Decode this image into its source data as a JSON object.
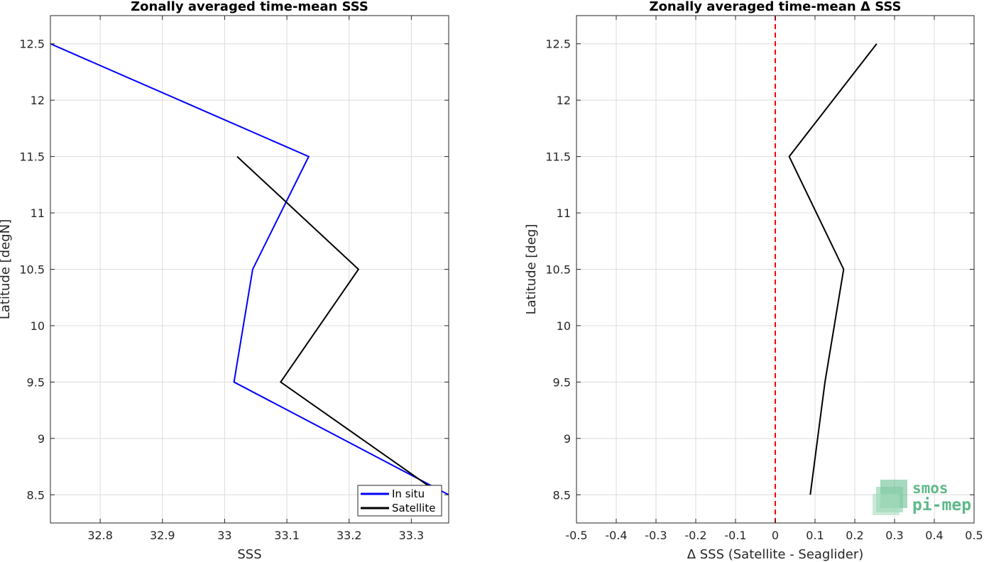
{
  "colors": {
    "in_situ": "#0000ff",
    "satellite": "#000000",
    "zero_line": "#ff0000",
    "grid": "#dcdcdc",
    "axes": "#262626",
    "logo": "#5fb98b"
  },
  "logo": {
    "line1": "smos",
    "line2": "pi-mep"
  },
  "chart_data": [
    {
      "type": "line",
      "title": "Zonally averaged time-mean SSS",
      "xlabel": "SSS",
      "ylabel": "Latitude [degN]",
      "xlim": [
        32.72,
        33.36
      ],
      "ylim": [
        8.25,
        12.75
      ],
      "xticks": [
        32.8,
        32.9,
        33,
        33.1,
        33.2,
        33.3
      ],
      "xtick_labels": [
        "32.8",
        "32.9",
        "33",
        "33.1",
        "33.2",
        "33.3"
      ],
      "yticks": [
        8.5,
        9,
        9.5,
        10,
        10.5,
        11,
        11.5,
        12,
        12.5
      ],
      "ytick_labels": [
        "8.5",
        "9",
        "9.5",
        "10",
        "10.5",
        "11",
        "11.5",
        "12",
        "12.5"
      ],
      "grid": true,
      "legend_position": "bottom-right",
      "series": [
        {
          "name": "In situ",
          "color_key": "in_situ",
          "x": [
            32.72,
            33.135,
            33.045,
            33.015,
            33.36
          ],
          "y": [
            12.5,
            11.5,
            10.5,
            9.5,
            8.5
          ]
        },
        {
          "name": "Satellite",
          "color_key": "satellite",
          "x": [
            33.02,
            33.215,
            33.09,
            33.33
          ],
          "y": [
            11.5,
            10.5,
            9.5,
            8.57
          ]
        }
      ]
    },
    {
      "type": "line",
      "title": "Zonally averaged time-mean Δ SSS",
      "xlabel": "Δ SSS (Satellite - Seaglider)",
      "ylabel": "Latitude [deg]",
      "xlim": [
        -0.5,
        0.5
      ],
      "ylim": [
        8.25,
        12.75
      ],
      "xticks": [
        -0.5,
        -0.4,
        -0.3,
        -0.2,
        -0.1,
        0,
        0.1,
        0.2,
        0.3,
        0.4,
        0.5
      ],
      "xtick_labels": [
        "-0.5",
        "-0.4",
        "-0.3",
        "-0.2",
        "-0.1",
        "0",
        "0.1",
        "0.2",
        "0.3",
        "0.4",
        "0.5"
      ],
      "yticks": [
        8.5,
        9,
        9.5,
        10,
        10.5,
        11,
        11.5,
        12,
        12.5
      ],
      "ytick_labels": [
        "8.5",
        "9",
        "9.5",
        "10",
        "10.5",
        "11",
        "11.5",
        "12",
        "12.5"
      ],
      "grid": true,
      "reference_line": {
        "x": 0,
        "style": "dashed",
        "color_key": "zero_line"
      },
      "series": [
        {
          "color_key": "satellite",
          "x": [
            0.255,
            0.035,
            0.172,
            0.125,
            0.088
          ],
          "y": [
            12.5,
            11.5,
            10.5,
            9.5,
            8.5
          ]
        }
      ]
    }
  ]
}
